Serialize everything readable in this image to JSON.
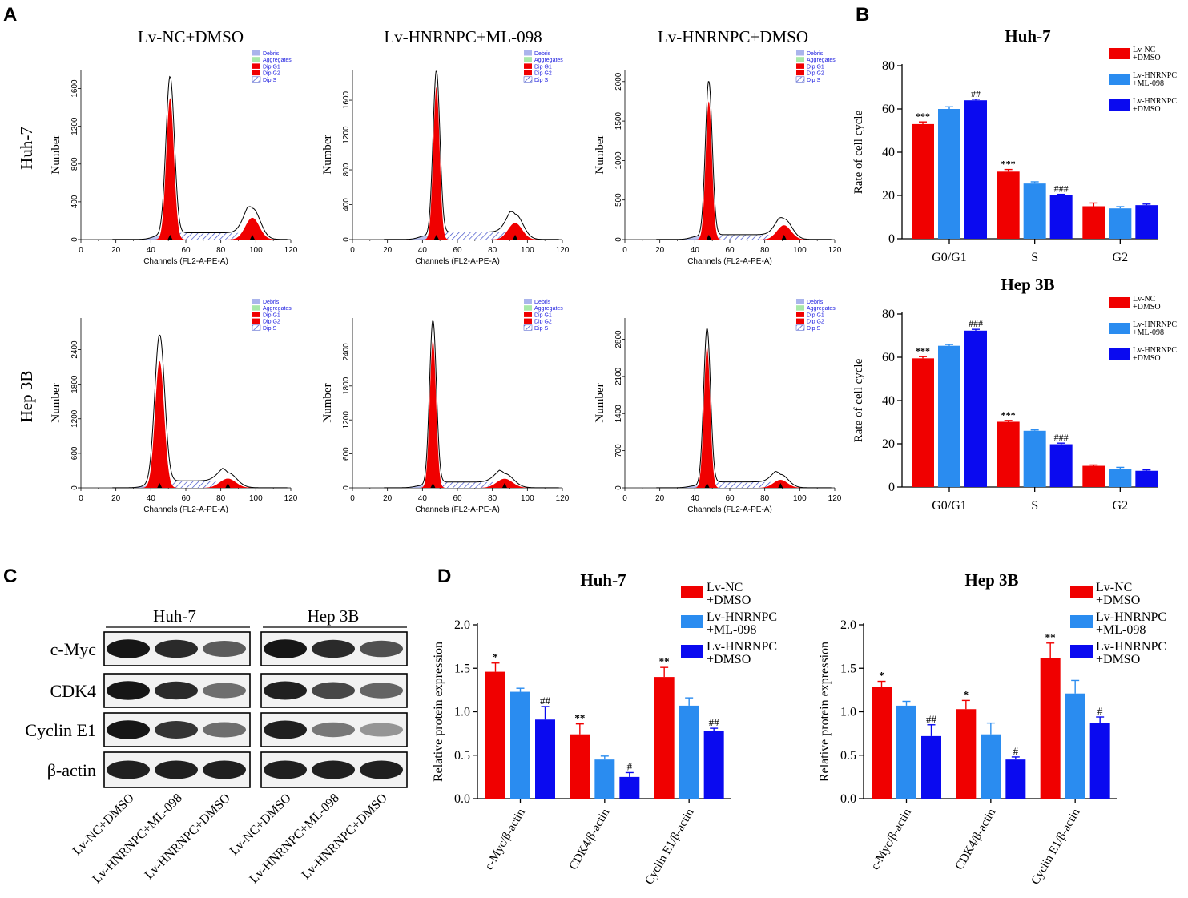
{
  "panel_letters": {
    "a": "A",
    "b": "B",
    "c": "C",
    "d": "D"
  },
  "colors": {
    "red": "#f00000",
    "lightblue": "#2a8cf0",
    "blue": "#0a0af0",
    "hatch": "#3f4fc8",
    "debris": "#aab4ec",
    "aggregates": "#a8e8a8",
    "legend_text": "#2020e0"
  },
  "flow": {
    "column_titles": [
      "Lv-NC+DMSO",
      "Lv-HNRNPC+ML-098",
      "Lv-HNRNPC+DMSO"
    ],
    "row_labels": [
      "Huh-7",
      "Hep 3B"
    ],
    "ylabel": "Number",
    "xlabel": "Channels (FL2-A-PE-A)",
    "x_ticks": [
      "0",
      "20",
      "40",
      "60",
      "80",
      "100",
      "120"
    ],
    "legend": [
      "Debris",
      "Aggregates",
      "Dip G1",
      "Dip G2",
      "Dip S"
    ],
    "y_ticks": [
      [
        "0",
        "400",
        "800",
        "1200",
        "1600"
      ],
      [
        "0",
        "400",
        "800",
        "1200",
        "1600"
      ],
      [
        "0",
        "500",
        "1000",
        "1500",
        "2000"
      ],
      [
        "0",
        "600",
        "1200",
        "1800",
        "2400"
      ],
      [
        "0",
        "600",
        "1200",
        "1800",
        "2400"
      ],
      [
        "0",
        "700",
        "1400",
        "2100",
        "2800"
      ]
    ],
    "histograms": [
      {
        "g1_channel": 51,
        "g1_count": 1500,
        "g1_sd": 2.2,
        "g2_channel": 98,
        "g2_count": 230,
        "g2_sd": 4.0,
        "s_level": 70,
        "g1_total": 1720,
        "g2_total": 330,
        "ymax": 1800
      },
      {
        "g1_channel": 48,
        "g1_count": 1750,
        "g1_sd": 1.8,
        "g2_channel": 93,
        "g2_count": 190,
        "g2_sd": 4.0,
        "s_level": 85,
        "g1_total": 1930,
        "g2_total": 290,
        "ymax": 1950
      },
      {
        "g1_channel": 48,
        "g1_count": 1750,
        "g1_sd": 1.8,
        "g2_channel": 91,
        "g2_count": 180,
        "g2_sd": 4.0,
        "s_level": 60,
        "g1_total": 2000,
        "g2_total": 260,
        "ymax": 2150
      },
      {
        "g1_channel": 45,
        "g1_count": 2200,
        "g1_sd": 2.6,
        "g2_channel": 84,
        "g2_count": 160,
        "g2_sd": 4.5,
        "s_level": 120,
        "g1_total": 2650,
        "g2_total": 260,
        "ymax": 2950
      },
      {
        "g1_channel": 46,
        "g1_count": 2600,
        "g1_sd": 1.8,
        "g2_channel": 87,
        "g2_count": 160,
        "g2_sd": 4.5,
        "s_level": 100,
        "g1_total": 2950,
        "g2_total": 250,
        "ymax": 3000
      },
      {
        "g1_channel": 47,
        "g1_count": 2650,
        "g1_sd": 1.8,
        "g2_channel": 89,
        "g2_count": 150,
        "g2_sd": 4.0,
        "s_level": 110,
        "g1_total": 3000,
        "g2_total": 250,
        "ymax": 3200
      }
    ]
  },
  "chart_data": [
    {
      "type": "bar",
      "title": "Huh-7",
      "ylabel": "Rate of cell cycle",
      "xlabel": "",
      "categories": [
        "G0/G1",
        "S",
        "G2"
      ],
      "ylim": [
        0,
        80
      ],
      "yticks": [
        "0",
        "20",
        "40",
        "60",
        "80"
      ],
      "series": [
        {
          "name": "Lv-NC\n+DMSO",
          "values": [
            53,
            31,
            15
          ],
          "errors": [
            1,
            1,
            1.5
          ],
          "marks": [
            "***",
            "***",
            ""
          ]
        },
        {
          "name": "Lv-HNRNPC\n+ML-098",
          "values": [
            60,
            25.5,
            14
          ],
          "errors": [
            1,
            0.8,
            0.8
          ],
          "marks": [
            "",
            "",
            ""
          ]
        },
        {
          "name": "Lv-HNRNPC\n+DMSO",
          "values": [
            64,
            20,
            15.5
          ],
          "errors": [
            0.5,
            0.5,
            0.5
          ],
          "marks": [
            "##",
            "###",
            ""
          ]
        }
      ]
    },
    {
      "type": "bar",
      "title": "Hep 3B",
      "ylabel": "Rate of cell cycle",
      "xlabel": "",
      "categories": [
        "G0/G1",
        "S",
        "G2"
      ],
      "ylim": [
        0,
        80
      ],
      "yticks": [
        "0",
        "20",
        "40",
        "60",
        "80"
      ],
      "series": [
        {
          "name": "Lv-NC\n+DMSO",
          "values": [
            59.5,
            30.2,
            9.8
          ],
          "errors": [
            0.8,
            0.6,
            0.4
          ],
          "marks": [
            "***",
            "***",
            ""
          ]
        },
        {
          "name": "Lv-HNRNPC\n+ML-098",
          "values": [
            65.3,
            26,
            8.5
          ],
          "errors": [
            0.6,
            0.4,
            0.6
          ],
          "marks": [
            "",
            "",
            ""
          ]
        },
        {
          "name": "Lv-HNRNPC\n+DMSO",
          "values": [
            72.3,
            19.8,
            7.5
          ],
          "errors": [
            0.6,
            0.5,
            0.4
          ],
          "marks": [
            "###",
            "###",
            ""
          ]
        }
      ]
    },
    {
      "type": "bar",
      "title": "Huh-7",
      "ylabel": "Relative protein expression",
      "xlabel": "",
      "categories": [
        "c-Myc/β-actin",
        "CDK4/β-actin",
        "Cyclin E1/β-actin"
      ],
      "ylim": [
        0,
        2.0
      ],
      "yticks": [
        "0.0",
        "0.5",
        "1.0",
        "1.5",
        "2.0"
      ],
      "series": [
        {
          "name": "Lv-NC\n+DMSO",
          "values": [
            1.46,
            0.74,
            1.4
          ],
          "errors": [
            0.1,
            0.12,
            0.11
          ],
          "marks": [
            "*",
            "**",
            "**"
          ]
        },
        {
          "name": "Lv-HNRNPC\n+ML-098",
          "values": [
            1.23,
            0.45,
            1.07
          ],
          "errors": [
            0.04,
            0.04,
            0.09
          ],
          "marks": [
            "",
            "",
            ""
          ]
        },
        {
          "name": "Lv-HNRNPC\n+DMSO",
          "values": [
            0.91,
            0.25,
            0.78
          ],
          "errors": [
            0.15,
            0.05,
            0.03
          ],
          "marks": [
            "##",
            "#",
            "##"
          ]
        }
      ]
    },
    {
      "type": "bar",
      "title": "Hep 3B",
      "ylabel": "Relative protein expression",
      "xlabel": "",
      "categories": [
        "c-Myc/β-actin",
        "CDK4/β-actin",
        "Cyclin E1/β-actin"
      ],
      "ylim": [
        0,
        2.0
      ],
      "yticks": [
        "0.0",
        "0.5",
        "1.0",
        "1.5",
        "2.0"
      ],
      "series": [
        {
          "name": "Lv-NC\n+DMSO",
          "values": [
            1.29,
            1.03,
            1.62
          ],
          "errors": [
            0.06,
            0.1,
            0.17
          ],
          "marks": [
            "*",
            "*",
            "**"
          ]
        },
        {
          "name": "Lv-HNRNPC\n+ML-098",
          "values": [
            1.07,
            0.74,
            1.21
          ],
          "errors": [
            0.05,
            0.13,
            0.15
          ],
          "marks": [
            "",
            "",
            ""
          ]
        },
        {
          "name": "Lv-HNRNPC\n+DMSO",
          "values": [
            0.72,
            0.45,
            0.87
          ],
          "errors": [
            0.13,
            0.03,
            0.07
          ],
          "marks": [
            "##",
            "#",
            "#"
          ]
        }
      ]
    }
  ],
  "blot": {
    "group_labels": [
      "Huh-7",
      "Hep 3B"
    ],
    "proteins": [
      "c-Myc",
      "CDK4",
      "Cyclin E1",
      "β-actin"
    ],
    "lane_labels": [
      "Lv-NC+DMSO",
      "Lv-HNRNPC+ML-098",
      "Lv-HNRNPC+DMSO",
      "Lv-NC+DMSO",
      "Lv-HNRNPC+ML-098",
      "Lv-HNRNPC+DMSO"
    ],
    "band_intensity": [
      [
        0.95,
        0.85,
        0.6,
        0.95,
        0.85,
        0.65
      ],
      [
        0.95,
        0.85,
        0.5,
        0.9,
        0.7,
        0.55
      ],
      [
        0.95,
        0.8,
        0.5,
        0.9,
        0.45,
        0.3
      ],
      [
        0.9,
        0.9,
        0.9,
        0.9,
        0.9,
        0.9
      ]
    ]
  }
}
